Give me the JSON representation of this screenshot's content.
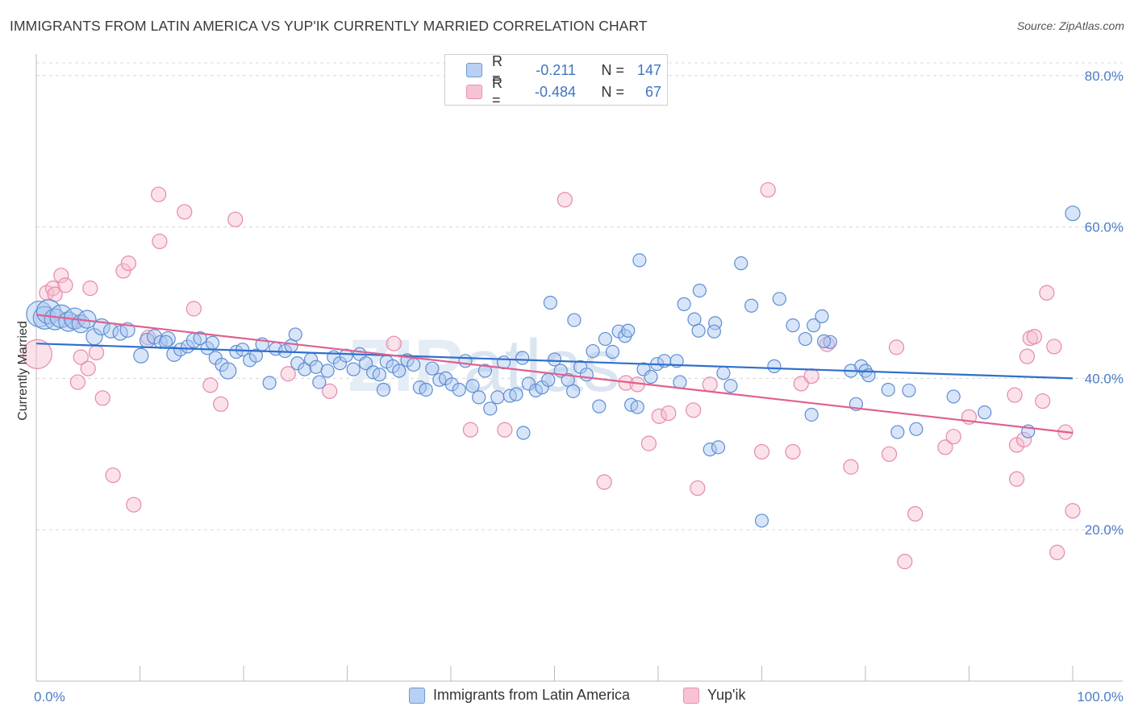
{
  "title": "IMMIGRANTS FROM LATIN AMERICA VS YUP'IK CURRENTLY MARRIED CORRELATION CHART",
  "source": "Source: ZipAtlas.com",
  "watermark": "ZIPatlas",
  "colors": {
    "blue_fill": "#a9c6ef",
    "blue_stroke": "#5d8ed3",
    "blue_line": "#2f6fcc",
    "pink_fill": "#f6bcd0",
    "pink_stroke": "#e58aab",
    "pink_line": "#e0608f",
    "tick": "#4a7cc7",
    "grid": "#d8d8d8"
  },
  "legend": {
    "rows": [
      {
        "label": "R =",
        "r": "-0.211",
        "n_label": "N =",
        "n": "147",
        "color": "blue"
      },
      {
        "label": "R =",
        "r": "-0.484",
        "n_label": "N =",
        "n": "67",
        "color": "pink"
      }
    ]
  },
  "bottom_legend": {
    "series1": "Immigrants from Latin America",
    "series2": "Yup'ik"
  },
  "chart_data": {
    "type": "scatter",
    "title": "IMMIGRANTS FROM LATIN AMERICA VS YUP'IK CURRENTLY MARRIED CORRELATION CHART",
    "xlabel": "",
    "ylabel": "Currently Married",
    "xlim": [
      0,
      100
    ],
    "ylim": [
      0,
      82
    ],
    "x_tick_labels": [
      "0.0%",
      "100.0%"
    ],
    "y_ticks": [
      20,
      40,
      60,
      80
    ],
    "y_tick_labels": [
      "20.0%",
      "40.0%",
      "60.0%",
      "80.0%"
    ],
    "grid": true,
    "series": [
      {
        "name": "Immigrants from Latin America",
        "color": "blue",
        "trend": {
          "x0": 0,
          "y0": 44.6,
          "x1": 100,
          "y1": 40.0
        },
        "points": [
          [
            0.3,
            48.5,
            16
          ],
          [
            0.8,
            48.0,
            14
          ],
          [
            1.2,
            48.8,
            15
          ],
          [
            1.8,
            47.8,
            13
          ],
          [
            2.4,
            48.2,
            14
          ],
          [
            3.1,
            47.5,
            12
          ],
          [
            3.7,
            47.9,
            13
          ],
          [
            4.3,
            47.2,
            11
          ],
          [
            4.9,
            47.8,
            11
          ],
          [
            5.6,
            45.5,
            10
          ],
          [
            6.3,
            46.8,
            10
          ],
          [
            7.2,
            46.3,
            9
          ],
          [
            8.1,
            46.0,
            9
          ],
          [
            8.8,
            46.4,
            9
          ],
          [
            10.1,
            43.0,
            9
          ],
          [
            10.7,
            45.0,
            9
          ],
          [
            11.4,
            45.5,
            9
          ],
          [
            12.0,
            44.8,
            8
          ],
          [
            12.7,
            45.2,
            9
          ],
          [
            13.3,
            43.2,
            9
          ],
          [
            13.9,
            43.8,
            8
          ],
          [
            14.6,
            44.2,
            8
          ],
          [
            15.2,
            45.0,
            9
          ],
          [
            15.8,
            45.3,
            8
          ],
          [
            16.5,
            44.0,
            8
          ],
          [
            17.3,
            42.7,
            8
          ],
          [
            17.9,
            41.8,
            8
          ],
          [
            18.5,
            41.0,
            10
          ],
          [
            19.3,
            43.5,
            8
          ],
          [
            19.9,
            43.8,
            8
          ],
          [
            20.6,
            42.4,
            8
          ],
          [
            21.2,
            43.0,
            8
          ],
          [
            21.8,
            44.5,
            8
          ],
          [
            22.5,
            39.4,
            8
          ],
          [
            23.1,
            43.9,
            8
          ],
          [
            24.0,
            43.6,
            8
          ],
          [
            24.6,
            44.3,
            8
          ],
          [
            25.2,
            42.0,
            8
          ],
          [
            25.9,
            41.2,
            8
          ],
          [
            26.5,
            42.5,
            8
          ],
          [
            27.0,
            41.5,
            8
          ],
          [
            27.3,
            39.5,
            8
          ],
          [
            28.1,
            41.0,
            8
          ],
          [
            28.7,
            42.8,
            8
          ],
          [
            29.3,
            42.0,
            8
          ],
          [
            29.9,
            43.0,
            8
          ],
          [
            30.6,
            41.2,
            8
          ],
          [
            31.2,
            43.2,
            8
          ],
          [
            31.8,
            42.0,
            8
          ],
          [
            32.5,
            40.8,
            8
          ],
          [
            33.1,
            40.5,
            8
          ],
          [
            33.8,
            42.2,
            8
          ],
          [
            34.4,
            41.6,
            8
          ],
          [
            35.0,
            41.0,
            8
          ],
          [
            35.8,
            42.4,
            8
          ],
          [
            36.4,
            41.8,
            8
          ],
          [
            37.0,
            38.8,
            8
          ],
          [
            37.6,
            38.5,
            8
          ],
          [
            38.2,
            41.3,
            8
          ],
          [
            38.9,
            39.8,
            8
          ],
          [
            39.5,
            40.0,
            8
          ],
          [
            40.1,
            39.2,
            8
          ],
          [
            40.8,
            38.5,
            8
          ],
          [
            41.4,
            42.3,
            8
          ],
          [
            42.1,
            39.0,
            8
          ],
          [
            42.7,
            37.5,
            8
          ],
          [
            43.3,
            41.0,
            8
          ],
          [
            43.8,
            36.0,
            8
          ],
          [
            44.5,
            37.5,
            8
          ],
          [
            45.1,
            42.1,
            8
          ],
          [
            45.7,
            37.7,
            8
          ],
          [
            46.3,
            37.9,
            8
          ],
          [
            46.9,
            42.7,
            8
          ],
          [
            47.5,
            39.3,
            8
          ],
          [
            48.2,
            38.4,
            8
          ],
          [
            48.8,
            38.8,
            8
          ],
          [
            49.4,
            39.8,
            8
          ],
          [
            50.0,
            42.5,
            8
          ],
          [
            50.6,
            41.0,
            8
          ],
          [
            51.3,
            39.8,
            8
          ],
          [
            51.8,
            38.3,
            8
          ],
          [
            52.5,
            41.5,
            8
          ],
          [
            53.1,
            40.5,
            8
          ],
          [
            53.7,
            43.6,
            8
          ],
          [
            54.3,
            36.3,
            8
          ],
          [
            54.9,
            45.2,
            8
          ],
          [
            55.6,
            43.5,
            8
          ],
          [
            56.2,
            46.2,
            8
          ],
          [
            56.8,
            45.6,
            8
          ],
          [
            57.4,
            36.5,
            8
          ],
          [
            58.0,
            36.2,
            8
          ],
          [
            58.6,
            41.2,
            8
          ],
          [
            59.3,
            40.2,
            8
          ],
          [
            59.9,
            41.9,
            8
          ],
          [
            47.0,
            32.8,
            8
          ],
          [
            49.6,
            50.0,
            8
          ],
          [
            51.9,
            47.7,
            8
          ],
          [
            57.1,
            46.3,
            8
          ],
          [
            63.5,
            47.8,
            8
          ],
          [
            64.0,
            51.6,
            8
          ],
          [
            62.5,
            49.8,
            8
          ],
          [
            63.9,
            46.3,
            8
          ],
          [
            65.5,
            47.3,
            8
          ],
          [
            65.4,
            46.2,
            8
          ],
          [
            67.0,
            39.0,
            8
          ],
          [
            66.3,
            40.7,
            8
          ],
          [
            65.0,
            30.6,
            8
          ],
          [
            68.0,
            55.2,
            8
          ],
          [
            69.0,
            49.6,
            8
          ],
          [
            71.7,
            50.5,
            8
          ],
          [
            73.0,
            47.0,
            8
          ],
          [
            74.2,
            45.2,
            8
          ],
          [
            74.8,
            35.2,
            8
          ],
          [
            75.0,
            47.0,
            8
          ],
          [
            75.8,
            48.2,
            8
          ],
          [
            76.6,
            44.8,
            8
          ],
          [
            76.0,
            44.9,
            8
          ],
          [
            58.2,
            55.6,
            8
          ],
          [
            60.6,
            42.3,
            8
          ],
          [
            61.8,
            42.3,
            8
          ],
          [
            62.1,
            39.5,
            8
          ],
          [
            71.2,
            41.6,
            8
          ],
          [
            78.6,
            41.0,
            8
          ],
          [
            79.1,
            36.6,
            8
          ],
          [
            79.6,
            41.6,
            8
          ],
          [
            80.0,
            41.0,
            8
          ],
          [
            80.3,
            40.4,
            8
          ],
          [
            82.2,
            38.5,
            8
          ],
          [
            84.2,
            38.4,
            8
          ],
          [
            83.1,
            32.9,
            8
          ],
          [
            84.9,
            33.3,
            8
          ],
          [
            88.5,
            37.6,
            8
          ],
          [
            91.5,
            35.5,
            8
          ],
          [
            95.7,
            33.0,
            8
          ],
          [
            100.0,
            61.8,
            9
          ],
          [
            65.8,
            30.9,
            8
          ],
          [
            70.0,
            21.2,
            8
          ],
          [
            12.5,
            44.8,
            8
          ],
          [
            17.0,
            44.7,
            8
          ],
          [
            25.0,
            45.8,
            8
          ],
          [
            33.5,
            38.5,
            8
          ]
        ]
      },
      {
        "name": "Yup'ik",
        "color": "pink",
        "trend": {
          "x0": 0,
          "y0": 48.4,
          "x1": 100,
          "y1": 32.8
        },
        "points": [
          [
            0.1,
            43.2,
            18
          ],
          [
            1.0,
            51.3,
            9
          ],
          [
            1.6,
            51.9,
            9
          ],
          [
            1.8,
            51.1,
            9
          ],
          [
            2.4,
            53.6,
            9
          ],
          [
            2.8,
            52.3,
            9
          ],
          [
            3.6,
            47.5,
            9
          ],
          [
            4.0,
            39.5,
            9
          ],
          [
            4.3,
            42.8,
            9
          ],
          [
            5.0,
            41.3,
            9
          ],
          [
            5.2,
            51.9,
            9
          ],
          [
            5.8,
            43.4,
            9
          ],
          [
            6.4,
            37.4,
            9
          ],
          [
            7.4,
            27.2,
            9
          ],
          [
            8.4,
            54.2,
            9
          ],
          [
            8.9,
            55.2,
            9
          ],
          [
            9.4,
            23.3,
            9
          ],
          [
            10.8,
            45.4,
            9
          ],
          [
            11.8,
            64.3,
            9
          ],
          [
            11.9,
            58.1,
            9
          ],
          [
            14.3,
            62.0,
            9
          ],
          [
            15.2,
            49.2,
            9
          ],
          [
            16.8,
            39.1,
            9
          ],
          [
            17.8,
            36.6,
            9
          ],
          [
            19.2,
            61.0,
            9
          ],
          [
            24.3,
            40.6,
            9
          ],
          [
            28.3,
            38.3,
            9
          ],
          [
            34.5,
            44.6,
            9
          ],
          [
            41.9,
            33.2,
            9
          ],
          [
            51.0,
            63.6,
            9
          ],
          [
            54.8,
            26.3,
            9
          ],
          [
            56.9,
            39.4,
            9
          ],
          [
            58.0,
            39.2,
            9
          ],
          [
            59.1,
            31.4,
            9
          ],
          [
            60.1,
            35.0,
            9
          ],
          [
            61.0,
            35.4,
            9
          ],
          [
            63.4,
            35.8,
            9
          ],
          [
            63.8,
            25.5,
            9
          ],
          [
            65.0,
            39.2,
            9
          ],
          [
            70.0,
            30.3,
            9
          ],
          [
            70.6,
            64.9,
            9
          ],
          [
            73.0,
            30.3,
            9
          ],
          [
            73.8,
            39.3,
            9
          ],
          [
            74.8,
            40.3,
            9
          ],
          [
            76.3,
            44.5,
            9
          ],
          [
            78.6,
            28.3,
            9
          ],
          [
            82.3,
            30.0,
            9
          ],
          [
            83.0,
            44.1,
            9
          ],
          [
            83.8,
            15.8,
            9
          ],
          [
            84.8,
            22.1,
            9
          ],
          [
            87.7,
            30.9,
            9
          ],
          [
            88.5,
            32.3,
            9
          ],
          [
            90.0,
            34.9,
            9
          ],
          [
            94.4,
            37.8,
            9
          ],
          [
            94.6,
            31.2,
            9
          ],
          [
            95.3,
            31.9,
            9
          ],
          [
            95.6,
            42.9,
            9
          ],
          [
            95.9,
            45.3,
            9
          ],
          [
            96.3,
            45.5,
            9
          ],
          [
            97.1,
            37.0,
            9
          ],
          [
            97.5,
            51.3,
            9
          ],
          [
            98.2,
            44.2,
            9
          ],
          [
            98.5,
            17.0,
            9
          ],
          [
            99.3,
            32.9,
            9
          ],
          [
            100.0,
            22.5,
            9
          ],
          [
            94.6,
            26.7,
            9
          ],
          [
            45.2,
            33.2,
            9
          ]
        ]
      }
    ]
  }
}
